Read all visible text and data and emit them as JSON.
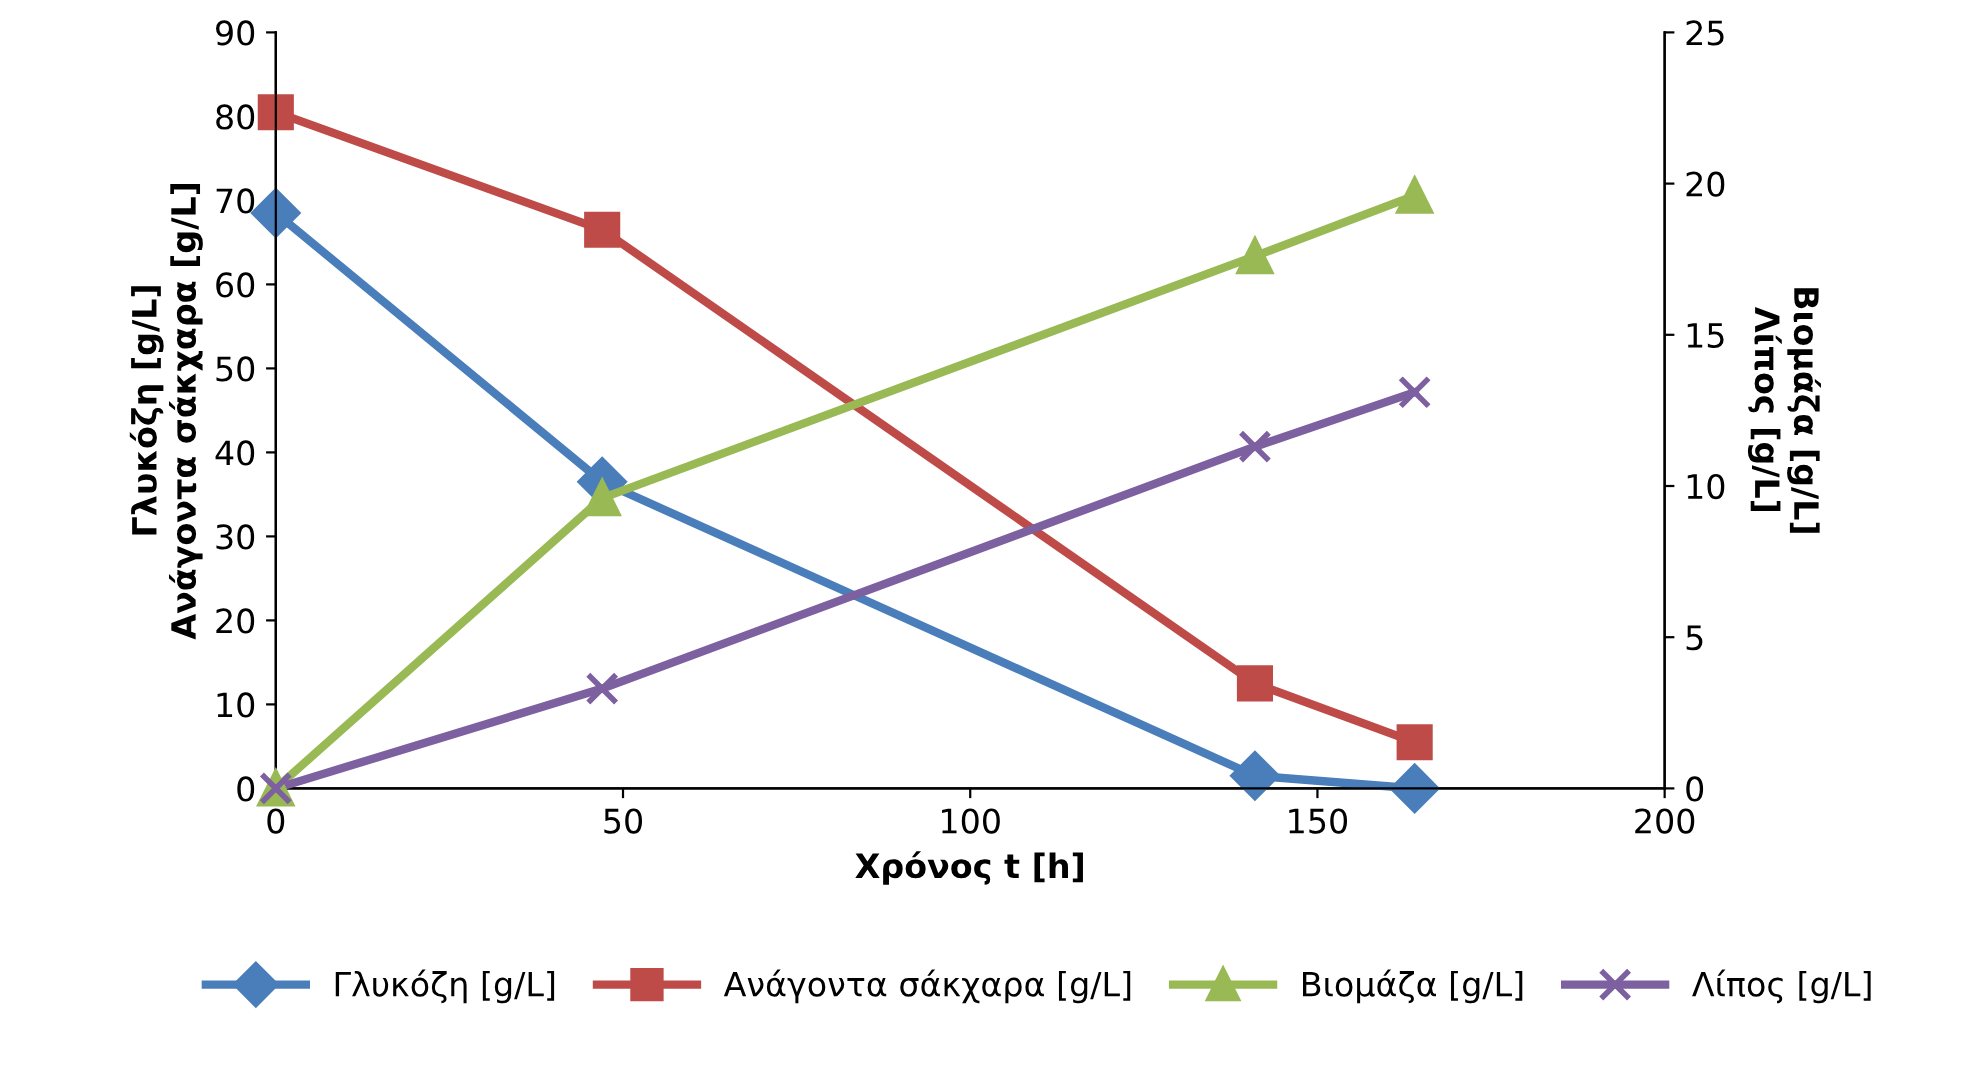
{
  "chart_data": {
    "type": "line",
    "xlabel": "Χρόνος t [h]",
    "ylabel": "Γλυκόζη [g/L]\nΑνάγοντα σάκχαρα [g/L]",
    "y2label": "Βιομάζα [g/L]\nΛίπος [g/L]",
    "xlim": [
      0,
      200
    ],
    "xticks": [
      0,
      50,
      100,
      150,
      200
    ],
    "ylim": [
      0,
      90
    ],
    "yticks": [
      0,
      10,
      20,
      30,
      40,
      50,
      60,
      70,
      80,
      90
    ],
    "y2lim": [
      0,
      25
    ],
    "y2ticks": [
      0,
      5,
      10,
      15,
      20,
      25
    ],
    "x": [
      0,
      47,
      141,
      164
    ],
    "grid": false,
    "legend": "bottom",
    "line_style": "solid",
    "series": [
      {
        "name": "Γλυκόζη [g/L]",
        "color": "#4a7ebb",
        "marker": "diamond",
        "values": [
          68.5,
          36.5,
          1.5,
          0
        ]
      },
      {
        "name": "Ανάγοντα σάκχαρα [g/L]",
        "color": "#be4b48",
        "marker": "square",
        "values": [
          80.5,
          66.5,
          12.5,
          5.5
        ]
      },
      {
        "name": "Βιομάζα [g/L]",
        "color": "#98b954",
        "marker": "triangle",
        "axis": "y2",
        "values": [
          0,
          9.6,
          17.6,
          19.6
        ]
      },
      {
        "name": "Λίπος [g/L]",
        "color": "#7d60a0",
        "marker": "cross",
        "axis": "y2",
        "values": [
          0,
          3.3,
          11.3,
          13.1
        ]
      }
    ]
  }
}
